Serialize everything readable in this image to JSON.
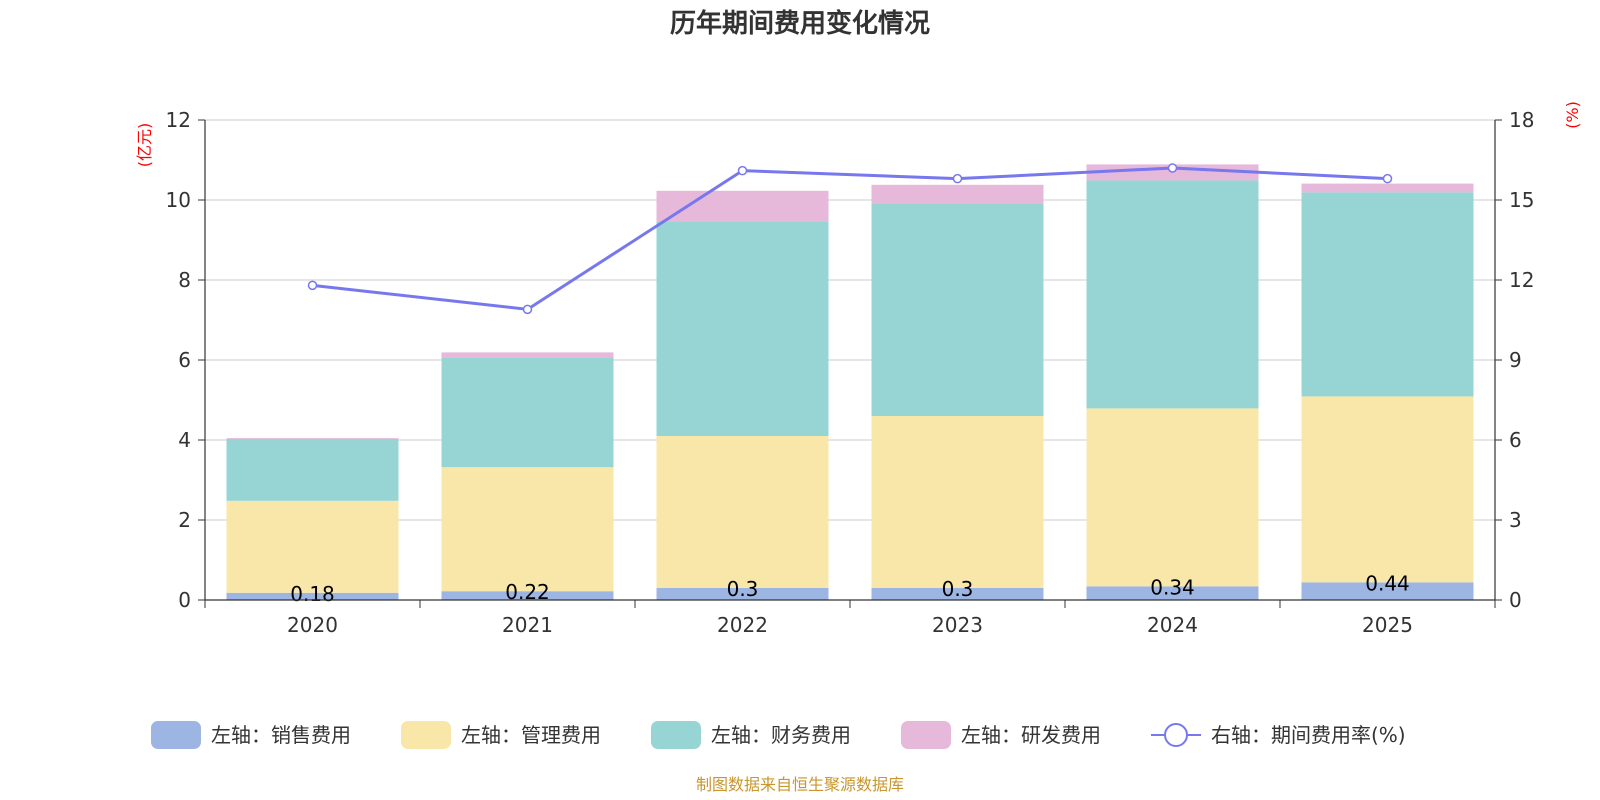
{
  "chart_data": {
    "type": "bar",
    "stacked": true,
    "title": "历年期间费用变化情况",
    "left_axis": {
      "name": "(亿元)",
      "min": 0,
      "max": 12,
      "ticks": [
        0,
        2,
        4,
        6,
        8,
        10,
        12
      ]
    },
    "right_axis": {
      "name": "(%)",
      "min": 0,
      "max": 18,
      "ticks": [
        0,
        3,
        6,
        9,
        12,
        15,
        18
      ]
    },
    "categories": [
      "2020",
      "2021",
      "2022",
      "2023",
      "2024",
      "2025"
    ],
    "series": [
      {
        "name": "左轴：销售费用",
        "type": "bar",
        "axis": "left",
        "color": "#9db5e3",
        "values": [
          0.18,
          0.22,
          0.3,
          0.3,
          0.34,
          0.44
        ],
        "labels": [
          "0.18",
          "0.22",
          "0.3",
          "0.3",
          "0.34",
          "0.44"
        ]
      },
      {
        "name": "左轴：管理费用",
        "type": "bar",
        "axis": "left",
        "color": "#f8e7a9",
        "values": [
          2.3,
          3.1,
          3.8,
          4.3,
          4.45,
          4.65
        ]
      },
      {
        "name": "左轴：财务费用",
        "type": "bar",
        "axis": "left",
        "color": "#97d4d4",
        "values": [
          1.55,
          2.75,
          5.35,
          5.3,
          5.7,
          5.1
        ]
      },
      {
        "name": "左轴：研发费用",
        "type": "bar",
        "axis": "left",
        "color": "#e6b8da",
        "values": [
          0.02,
          0.12,
          0.78,
          0.48,
          0.4,
          0.22
        ]
      },
      {
        "name": "右轴：期间费用率(%)",
        "type": "line",
        "axis": "right",
        "color": "#7777ee",
        "values": [
          11.8,
          10.9,
          16.1,
          15.8,
          16.2,
          15.8
        ]
      }
    ],
    "legend_position": "bottom"
  },
  "footer": {
    "source": "制图数据来自恒生聚源数据库"
  }
}
